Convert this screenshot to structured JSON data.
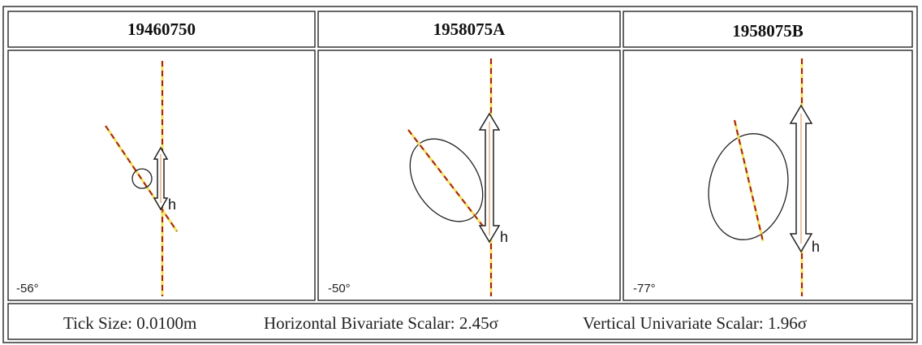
{
  "panels": [
    {
      "title": "19460750",
      "angle": "-56°",
      "height_label": "h"
    },
    {
      "title": "1958075A",
      "angle": "-50°",
      "height_label": "h"
    },
    {
      "title": "1958075B",
      "angle": "-77°",
      "height_label": "h"
    }
  ],
  "footer": {
    "tick_size": "Tick Size: 0.0100m",
    "horizontal": "Horizontal Bivariate Scalar: 2.45σ",
    "vertical": "Vertical Univariate Scalar: 1.96σ"
  }
}
